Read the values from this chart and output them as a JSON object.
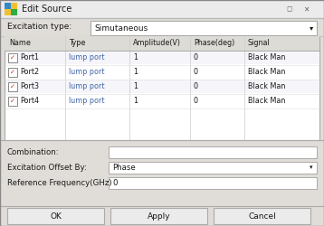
{
  "title": "Edit Source",
  "bg_color": "#e0ddd8",
  "dialog_bg": "#f0efee",
  "white": "#ffffff",
  "border_color": "#aaaaaa",
  "text_color": "#1a1a1a",
  "blue_text": "#4466aa",
  "header_bg": "#dddbd5",
  "excitation_label": "Excitation type:",
  "excitation_value": "Simutaneous",
  "table_headers": [
    "Name",
    "Type",
    "Amplitude(V)",
    "Phase(deg)",
    "Signal"
  ],
  "table_rows": [
    [
      "Port1",
      "lump port",
      "1",
      "0",
      "Black Man"
    ],
    [
      "Port2",
      "lump port",
      "1",
      "0",
      "Black Man"
    ],
    [
      "Port3",
      "lump port",
      "1",
      "0",
      "Black Man"
    ],
    [
      "Port4",
      "lump port",
      "1",
      "0",
      "Black Man"
    ]
  ],
  "combination_label": "Combination:",
  "offset_label": "Excitation Offset By:",
  "offset_value": "Phase",
  "freq_label": "Reference Frequency(GHz)",
  "freq_value": "0",
  "btn_ok": "OK",
  "btn_apply": "Apply",
  "btn_cancel": "Cancel"
}
